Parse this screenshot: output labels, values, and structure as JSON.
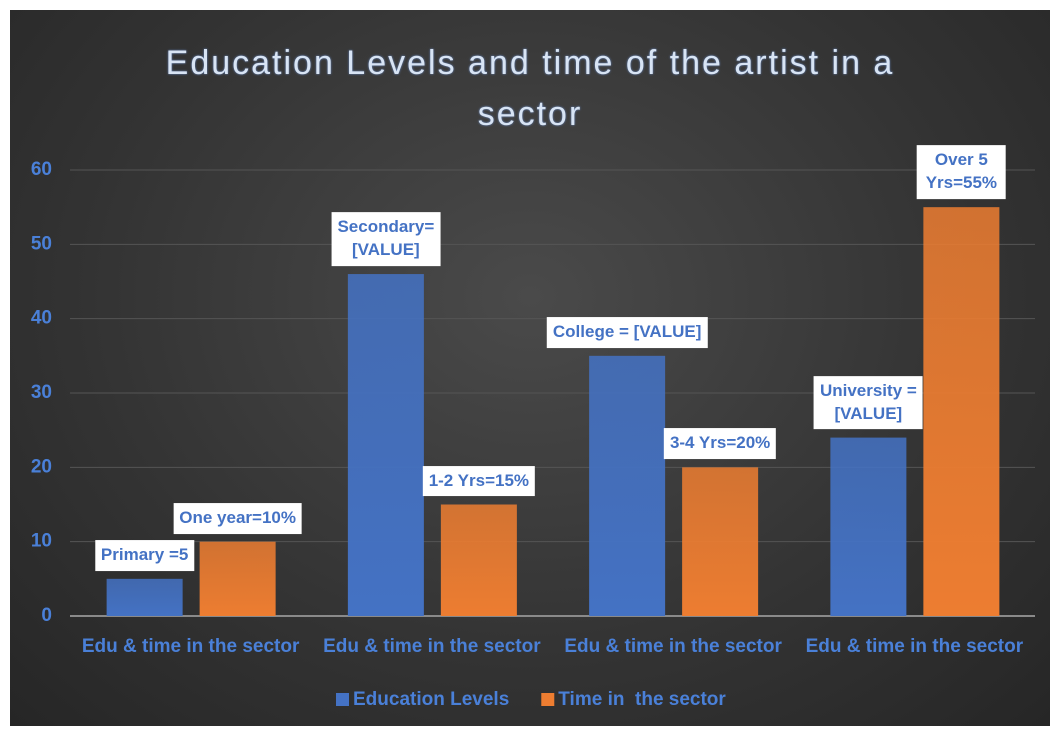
{
  "chart_data": {
    "type": "bar",
    "title": "Education Levels and time of the artist in a sector",
    "categories": [
      "Edu & time in the sector",
      "Edu & time in the sector",
      "Edu & time in the sector",
      "Edu & time in the sector"
    ],
    "series": [
      {
        "name": "Education Levels",
        "color": "#4472c4",
        "values": [
          5,
          46,
          35,
          24
        ],
        "value_labels": [
          "Primary  =5",
          "Secondary=\n[VALUE]",
          "College = [VALUE]",
          "University =\n[VALUE]"
        ]
      },
      {
        "name": "Time in  the sector",
        "color": "#ed7d31",
        "values": [
          10,
          15,
          20,
          55
        ],
        "value_labels": [
          "One year=10%",
          "1-2 Yrs=15%",
          "3-4 Yrs=20%",
          "Over 5 Yrs=55%"
        ]
      }
    ],
    "ylim": [
      0,
      60
    ],
    "yticks": [
      0,
      10,
      20,
      30,
      40,
      50,
      60
    ],
    "grid": true,
    "legend": "bottom"
  }
}
